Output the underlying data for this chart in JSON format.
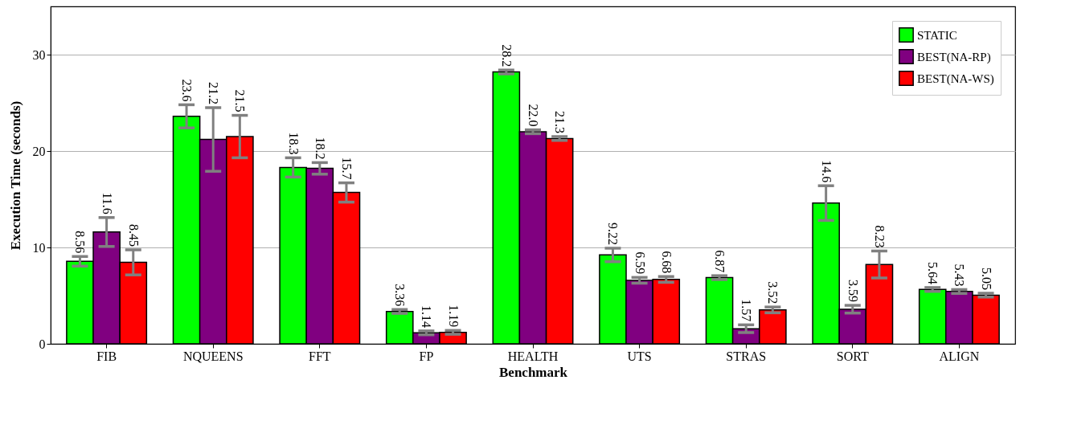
{
  "chart_data": {
    "type": "bar",
    "xlabel": "Benchmark",
    "ylabel": "Execution Time (seconds)",
    "categories": [
      "FIB",
      "NQUEENS",
      "FFT",
      "FP",
      "HEALTH",
      "UTS",
      "STRAS",
      "SORT",
      "ALIGN"
    ],
    "series": [
      {
        "name": "STATIC",
        "color": "#00ff00",
        "values": [
          8.56,
          23.6,
          18.3,
          3.36,
          28.2,
          9.22,
          6.87,
          14.6,
          5.64
        ],
        "value_labels": [
          "8.56",
          "23.6",
          "18.3",
          "3.36",
          "28.2",
          "9.22",
          "6.87",
          "14.6",
          "5.64"
        ],
        "errors": [
          0.5,
          1.2,
          1.0,
          0.2,
          0.2,
          0.7,
          0.2,
          1.8,
          0.2
        ]
      },
      {
        "name": "BEST(NA-RP)",
        "color": "#800080",
        "values": [
          11.6,
          21.2,
          18.2,
          1.14,
          22.0,
          6.59,
          1.57,
          3.59,
          5.43
        ],
        "value_labels": [
          "11.6",
          "21.2",
          "18.2",
          "1.14",
          "22.0",
          "6.59",
          "1.57",
          "3.59",
          "5.43"
        ],
        "errors": [
          1.5,
          3.3,
          0.6,
          0.2,
          0.2,
          0.3,
          0.4,
          0.4,
          0.2
        ]
      },
      {
        "name": "BEST(NA-WS)",
        "color": "#ff0000",
        "values": [
          8.45,
          21.5,
          15.7,
          1.19,
          21.3,
          6.68,
          3.52,
          8.23,
          5.05
        ],
        "value_labels": [
          "8.45",
          "21.5",
          "15.7",
          "1.19",
          "21.3",
          "6.68",
          "3.52",
          "8.23",
          "5.05"
        ],
        "errors": [
          1.3,
          2.2,
          1.0,
          0.2,
          0.2,
          0.3,
          0.3,
          1.4,
          0.2
        ]
      }
    ],
    "ylim": [
      0,
      35
    ],
    "yticks": [
      0,
      10,
      20,
      30
    ],
    "grid": "y",
    "legend": "top right"
  }
}
